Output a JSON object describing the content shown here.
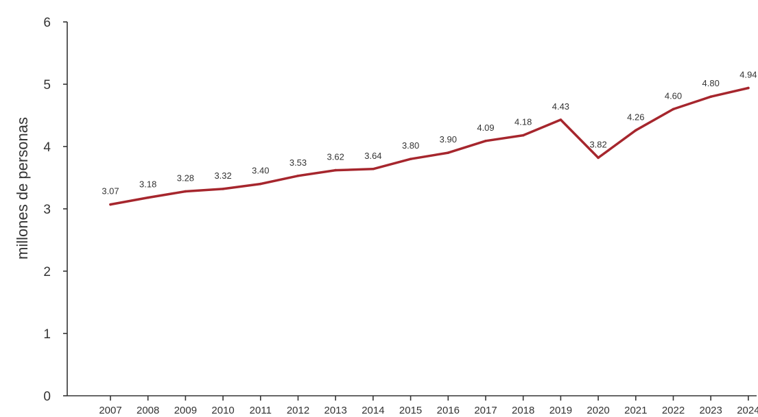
{
  "chart_data": {
    "type": "line",
    "title": "",
    "xlabel": "",
    "ylabel": "millones de personas",
    "categories": [
      "2007",
      "2008",
      "2009",
      "2010",
      "2011",
      "2012",
      "2013",
      "2014",
      "2015",
      "2016",
      "2017",
      "2018",
      "2019",
      "2020",
      "2021",
      "2022",
      "2023",
      "2024"
    ],
    "series": [
      {
        "values": [
          3.07,
          3.18,
          3.28,
          3.32,
          3.4,
          3.53,
          3.62,
          3.64,
          3.8,
          3.9,
          4.09,
          4.18,
          4.43,
          3.82,
          4.26,
          4.6,
          4.8,
          4.94
        ],
        "labels": [
          "3.07",
          "3.18",
          "3.28",
          "3.32",
          "3.40",
          "3.53",
          "3.62",
          "3.64",
          "3.80",
          "3.90",
          "4.09",
          "4.18",
          "4.43",
          "3.82",
          "4.26",
          "4.60",
          "4.80",
          "4.94"
        ],
        "color": "#a6262d"
      }
    ],
    "yticks": [
      "0",
      "1",
      "2",
      "3",
      "4",
      "5",
      "6"
    ],
    "ylim": [
      0,
      6
    ],
    "grid": false,
    "legend": "none"
  },
  "colors": {
    "line": "#a6262d",
    "axis": "#333333",
    "text": "#333333"
  }
}
